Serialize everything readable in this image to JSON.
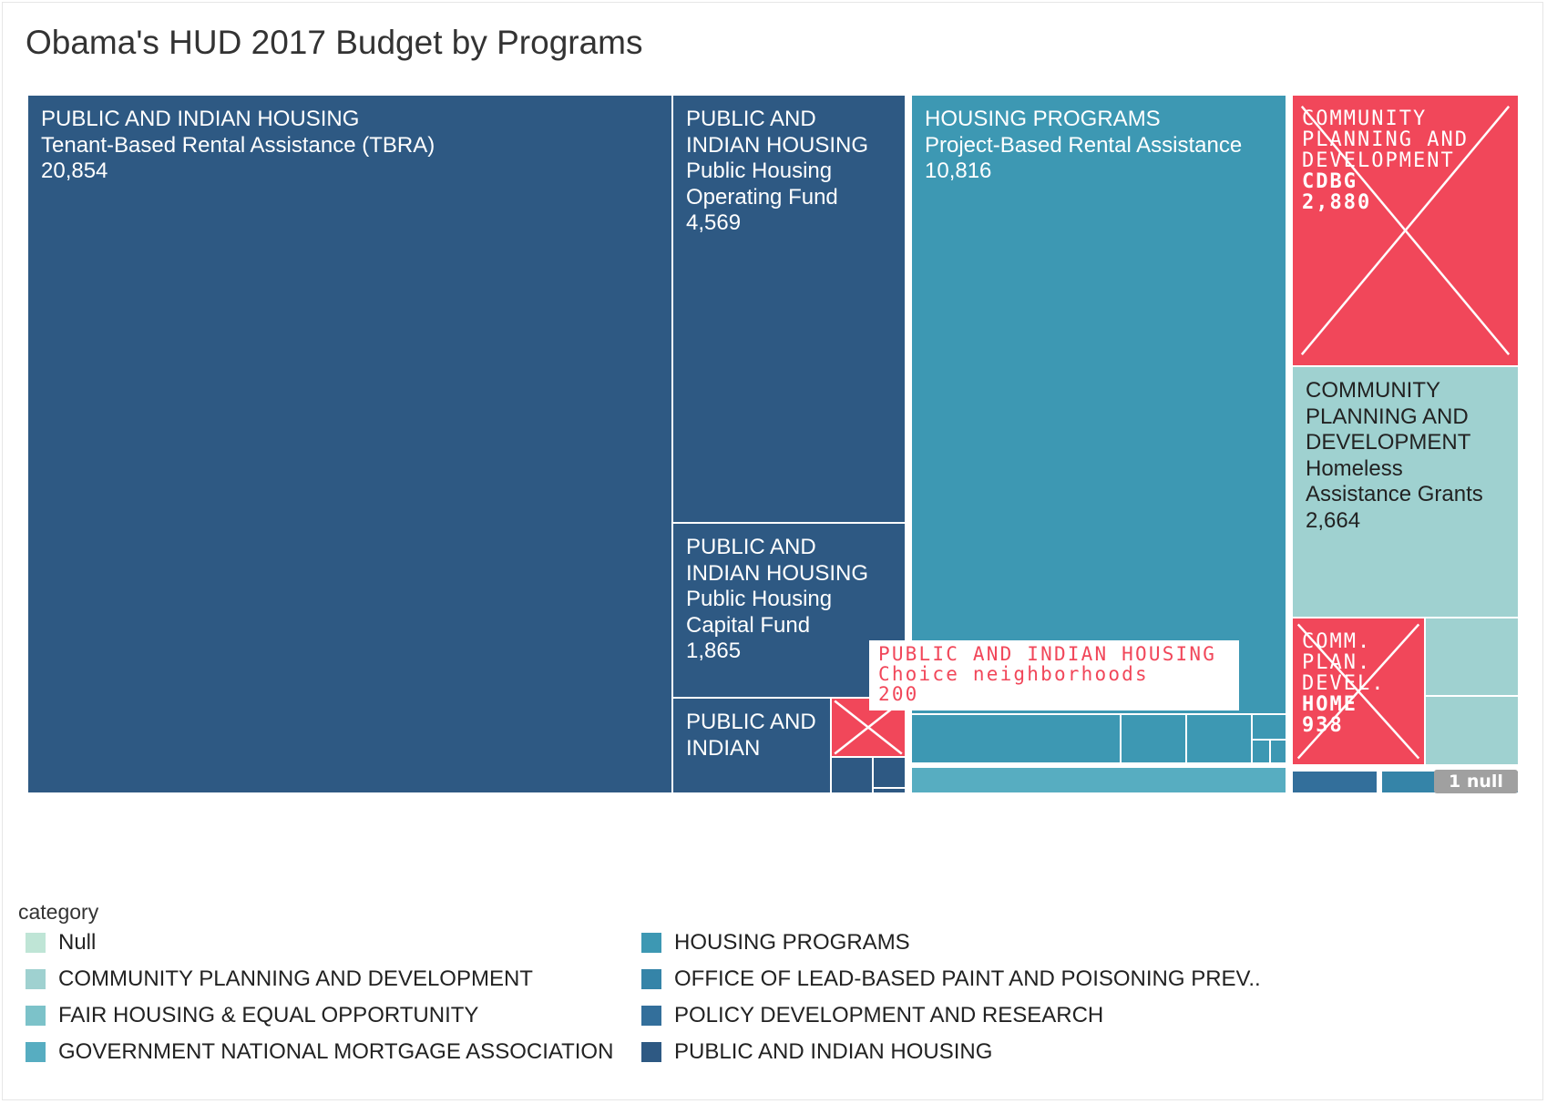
{
  "chart_data": {
    "type": "treemap",
    "title": "Obama's HUD 2017 Budget by Programs",
    "cells": [
      {
        "category": "PUBLIC AND INDIAN HOUSING",
        "program": "Tenant-Based Rental Assistance (TBRA)",
        "value": "20,854",
        "color": "#2e5983"
      },
      {
        "category": "PUBLIC AND INDIAN HOUSING",
        "program": "Public Housing Operating Fund",
        "value": "4,569",
        "color": "#2e5983"
      },
      {
        "category": "PUBLIC AND INDIAN HOUSING",
        "program": "Public Housing Capital Fund",
        "value": "1,865",
        "color": "#2e5983"
      },
      {
        "category": "PUBLIC AND INDIAN",
        "program": "",
        "value": "",
        "color": "#2e5983"
      },
      {
        "category": "PUBLIC AND INDIAN HOUSING",
        "program": "Choice neighborhoods",
        "value": "200",
        "color": "#f1475a",
        "crossed": true
      },
      {
        "category": "HOUSING PROGRAMS",
        "program": "Project-Based Rental Assistance",
        "value": "10,816",
        "color": "#3d98b3"
      },
      {
        "category": "COMMUNITY PLANNING AND DEVELOPMENT",
        "program": "CDBG",
        "value": "2,880",
        "color": "#f1475a",
        "crossed": true
      },
      {
        "category": "COMMUNITY PLANNING AND DEVELOPMENT",
        "program": "Homeless Assistance Grants",
        "value": "2,664",
        "color": "#9fd1d0"
      },
      {
        "category": "COMM. PLAN. DEVEL.",
        "program": "HOME",
        "value": "938",
        "color": "#f1475a",
        "crossed": true
      }
    ],
    "callout": {
      "line1": "PUBLIC AND INDIAN HOUSING",
      "line2": "Choice neighborhoods",
      "line3": "200"
    },
    "null_badge": "1 null",
    "legend_title": "category",
    "legend": [
      {
        "label": "Null",
        "color": "#bfe5d6"
      },
      {
        "label": "COMMUNITY PLANNING AND DEVELOPMENT",
        "color": "#9fd1d0"
      },
      {
        "label": "FAIR HOUSING & EQUAL OPPORTUNITY",
        "color": "#7cc2c9"
      },
      {
        "label": "GOVERNMENT NATIONAL MORTGAGE ASSOCIATION",
        "color": "#57adc1"
      },
      {
        "label": "HOUSING PROGRAMS",
        "color": "#3d98b3"
      },
      {
        "label": "OFFICE OF LEAD-BASED PAINT AND POISONING PREV..",
        "color": "#3584a8"
      },
      {
        "label": "POLICY DEVELOPMENT AND RESEARCH",
        "color": "#336f9b"
      },
      {
        "label": "PUBLIC AND INDIAN HOUSING",
        "color": "#2e5983"
      }
    ]
  }
}
